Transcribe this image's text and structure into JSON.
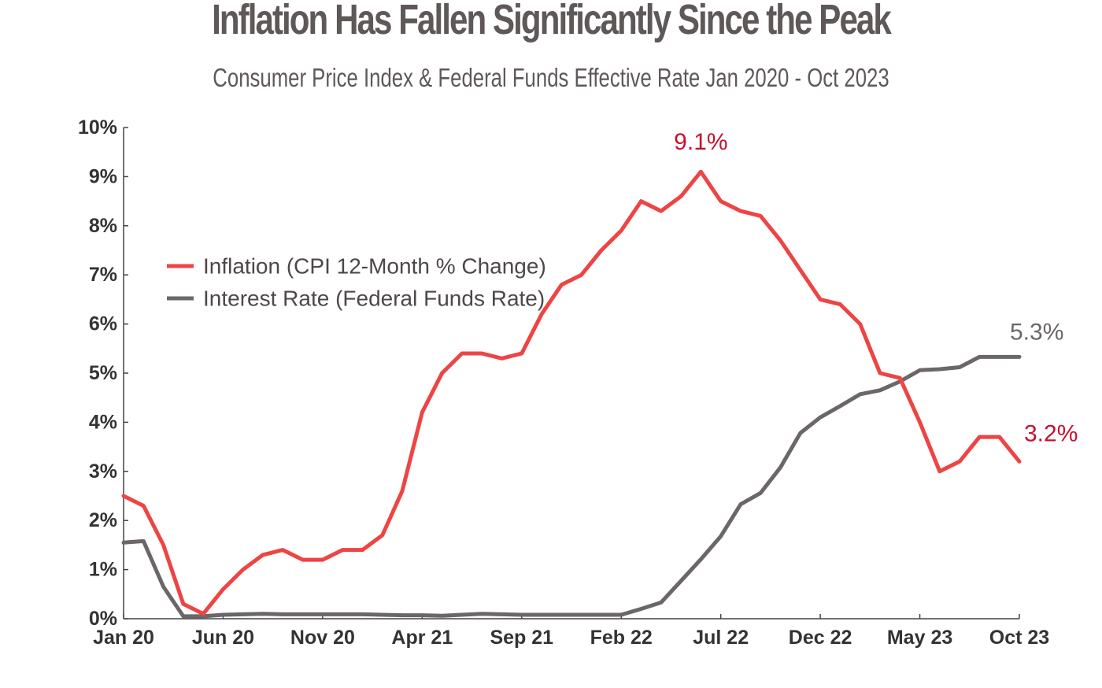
{
  "chart_data": {
    "type": "line",
    "title": "Inflation Has Fallen Significantly Since the Peak",
    "subtitle": "Consumer Price Index & Federal Funds Effective Rate Jan 2020 - Oct 2023",
    "xlabel": "",
    "ylabel": "",
    "x_tick_labels": [
      "Jan 20",
      "Jun 20",
      "Nov 20",
      "Apr 21",
      "Sep 21",
      "Feb 22",
      "Jul 22",
      "Dec 22",
      "May 23",
      "Oct 23"
    ],
    "y_tick_labels": [
      "0%",
      "1%",
      "2%",
      "3%",
      "4%",
      "5%",
      "6%",
      "7%",
      "8%",
      "9%",
      "10%"
    ],
    "ylim": [
      0,
      10
    ],
    "grid": false,
    "legend_placement": "upper-left",
    "x_months": [
      "Jan 2020",
      "Feb 2020",
      "Mar 2020",
      "Apr 2020",
      "May 2020",
      "Jun 2020",
      "Jul 2020",
      "Aug 2020",
      "Sep 2020",
      "Oct 2020",
      "Nov 2020",
      "Dec 2020",
      "Jan 2021",
      "Feb 2021",
      "Mar 2021",
      "Apr 2021",
      "May 2021",
      "Jun 2021",
      "Jul 2021",
      "Aug 2021",
      "Sep 2021",
      "Oct 2021",
      "Nov 2021",
      "Dec 2021",
      "Jan 2022",
      "Feb 2022",
      "Mar 2022",
      "Apr 2022",
      "May 2022",
      "Jun 2022",
      "Jul 2022",
      "Aug 2022",
      "Sep 2022",
      "Oct 2022",
      "Nov 2022",
      "Dec 2022",
      "Jan 2023",
      "Feb 2023",
      "Mar 2023",
      "Apr 2023",
      "May 2023",
      "Jun 2023",
      "Jul 2023",
      "Aug 2023",
      "Sep 2023",
      "Oct 2023"
    ],
    "series": [
      {
        "name": "Inflation (CPI 12-Month % Change)",
        "color": "#ee4444",
        "values": [
          2.5,
          2.3,
          1.5,
          0.3,
          0.1,
          0.6,
          1.0,
          1.3,
          1.4,
          1.2,
          1.2,
          1.4,
          1.4,
          1.7,
          2.6,
          4.2,
          5.0,
          5.4,
          5.4,
          5.3,
          5.4,
          6.2,
          6.8,
          7.0,
          7.5,
          7.9,
          8.5,
          8.3,
          8.6,
          9.1,
          8.5,
          8.3,
          8.2,
          7.7,
          7.1,
          6.5,
          6.4,
          6.0,
          5.0,
          4.9,
          4.0,
          3.0,
          3.2,
          3.7,
          3.7,
          3.2
        ]
      },
      {
        "name": "Interest Rate (Federal Funds Rate)",
        "color": "#6b6667",
        "values": [
          1.55,
          1.58,
          0.65,
          0.05,
          0.05,
          0.08,
          0.09,
          0.1,
          0.09,
          0.09,
          0.09,
          0.09,
          0.09,
          0.08,
          0.07,
          0.07,
          0.06,
          0.08,
          0.1,
          0.09,
          0.08,
          0.08,
          0.08,
          0.08,
          0.08,
          0.08,
          0.2,
          0.33,
          0.77,
          1.21,
          1.68,
          2.33,
          2.56,
          3.08,
          3.78,
          4.1,
          4.33,
          4.57,
          4.65,
          4.83,
          5.06,
          5.08,
          5.12,
          5.33,
          5.33,
          5.33
        ]
      }
    ],
    "annotations": [
      {
        "text": "9.1%",
        "series": 0,
        "index": 29,
        "color": "#c8102e"
      },
      {
        "text": "5.3%",
        "series": 1,
        "index": 45,
        "color": "#6b6667"
      },
      {
        "text": "3.2%",
        "series": 0,
        "index": 45,
        "color": "#c8102e"
      }
    ]
  }
}
